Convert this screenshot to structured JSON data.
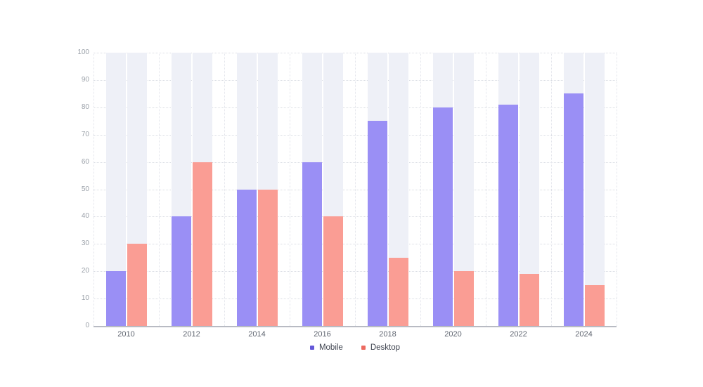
{
  "chart_data": {
    "type": "bar",
    "title": "",
    "xlabel": "",
    "ylabel": "",
    "categories": [
      "2010",
      "2012",
      "2014",
      "2016",
      "2018",
      "2020",
      "2022",
      "2024"
    ],
    "series": [
      {
        "name": "Mobile",
        "values": [
          20,
          40,
          50,
          60,
          75,
          80,
          81,
          85
        ],
        "bar_color": "#9a8ff5",
        "legend_color": "#6458d8"
      },
      {
        "name": "Desktop",
        "values": [
          30,
          60,
          50,
          40,
          25,
          20,
          19,
          15
        ],
        "bar_color": "#fa9d94",
        "legend_color": "#ec6a60"
      }
    ],
    "ylim": [
      0,
      100
    ],
    "yticks": [
      0,
      10,
      20,
      30,
      40,
      50,
      60,
      70,
      80,
      90,
      100
    ],
    "grid": "dotted horizontal lines at each y tick; dotted vertical lines at category boundaries",
    "slot_background_color": "#eef0f7",
    "axis_line_color": "#b8bbc3",
    "legend_position": "bottom-center"
  }
}
